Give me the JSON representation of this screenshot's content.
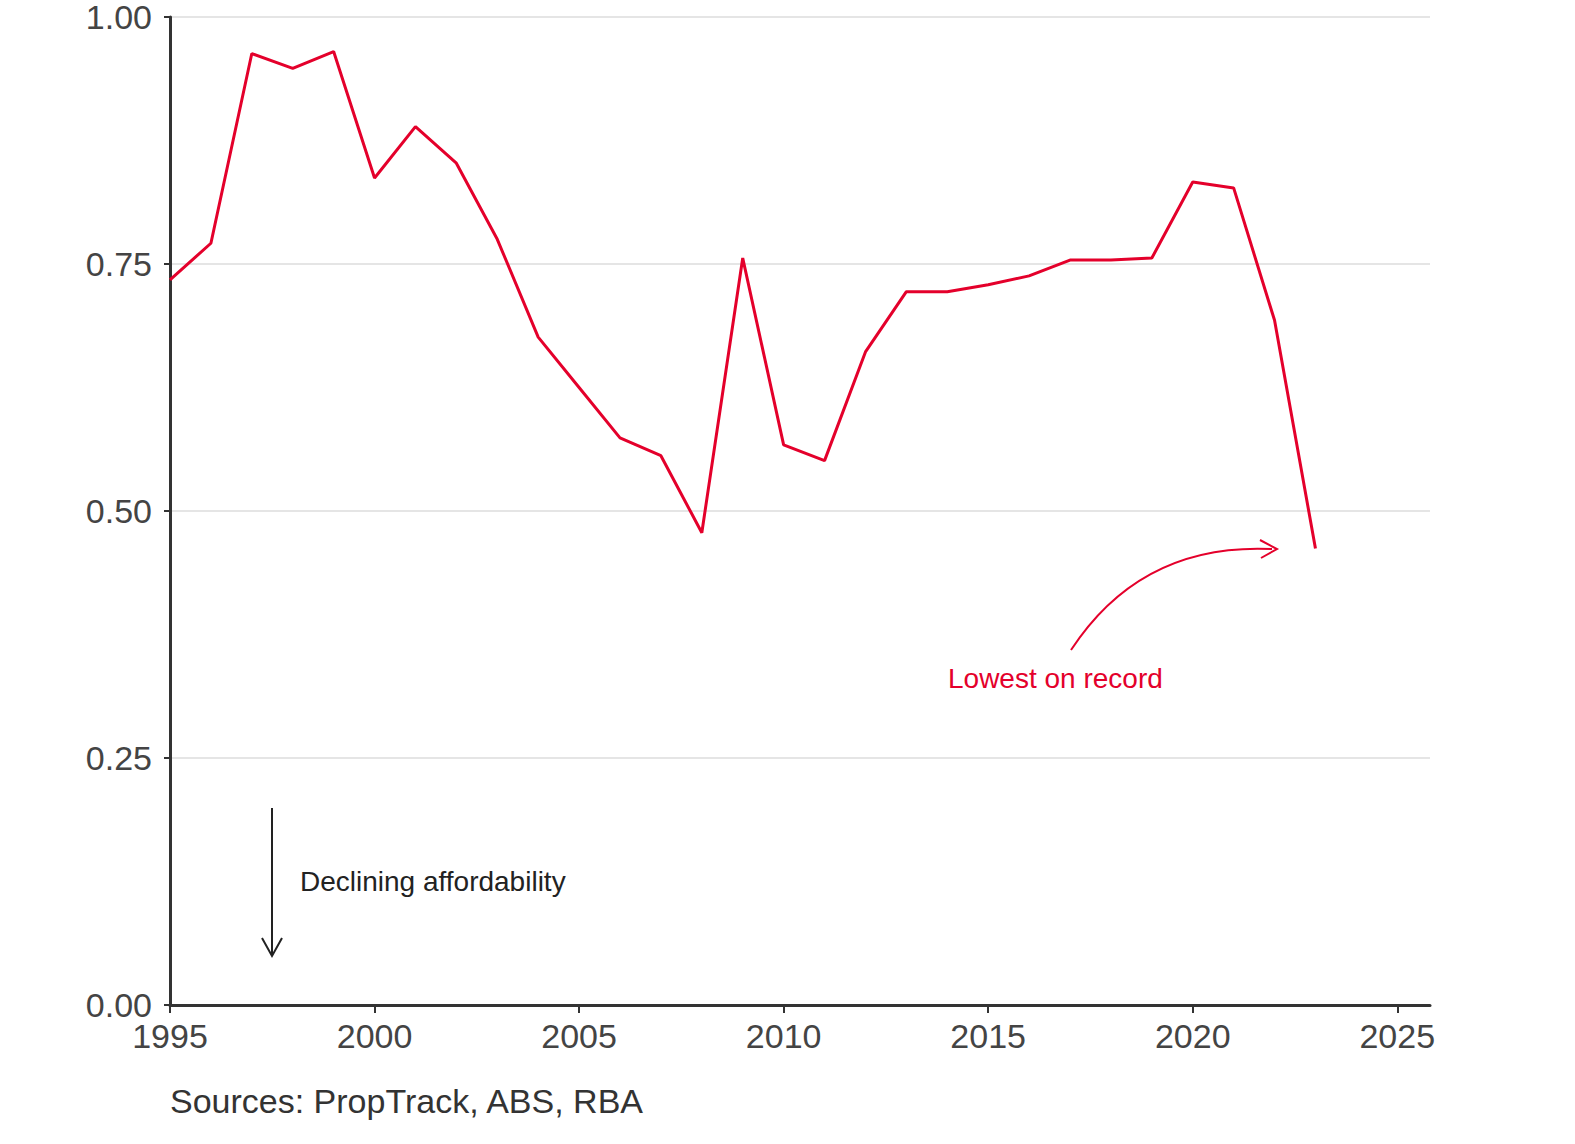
{
  "chart_data": {
    "type": "line",
    "x": [
      1995,
      1996,
      1997,
      1998,
      1999,
      2000,
      2001,
      2002,
      2003,
      2004,
      2005,
      2006,
      2007,
      2008,
      2009,
      2010,
      2011,
      2012,
      2013,
      2014,
      2015,
      2016,
      2017,
      2018,
      2019,
      2020,
      2021,
      2022,
      2023
    ],
    "series": [
      {
        "color": "#e4002b",
        "values": [
          0.734,
          0.771,
          0.963,
          0.948,
          0.965,
          0.837,
          0.889,
          0.852,
          0.775,
          0.676,
          0.625,
          0.574,
          0.556,
          0.478,
          0.756,
          0.567,
          0.551,
          0.661,
          0.722,
          0.722,
          0.729,
          0.738,
          0.754,
          0.754,
          0.756,
          0.833,
          0.827,
          0.693,
          0.462
        ]
      }
    ],
    "xlim": [
      1995,
      2025.8
    ],
    "xticks": [
      1995,
      2000,
      2005,
      2010,
      2015,
      2020,
      2025
    ],
    "ylim": [
      0,
      1
    ],
    "yticks": [
      {
        "value": 0,
        "label": "0.00"
      },
      0.25,
      {
        "value": 0.5,
        "label": "0.50"
      },
      0.75,
      {
        "value": 1,
        "label": "1.00"
      }
    ],
    "grid": true,
    "annotations": [
      "Lowest on record",
      "Declining affordability"
    ],
    "source": "Sources: PropTrack, ABS, RBA"
  }
}
